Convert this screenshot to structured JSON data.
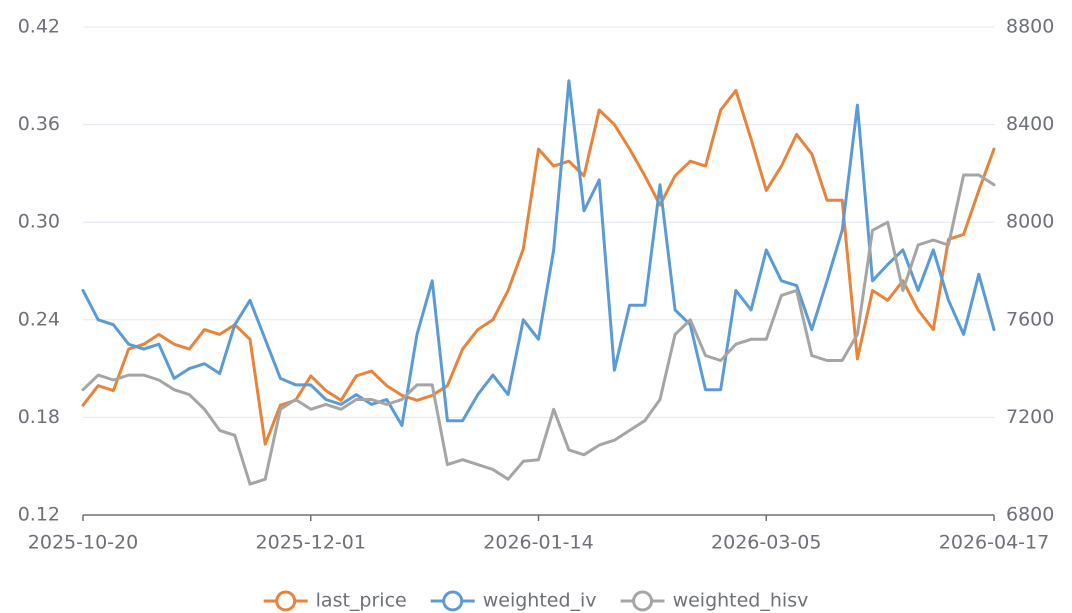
{
  "chart_data": {
    "type": "line",
    "categories": [
      "2025-10-20",
      null,
      null,
      null,
      null,
      null,
      null,
      null,
      null,
      null,
      null,
      null,
      null,
      null,
      null,
      "2025-12-01",
      null,
      null,
      null,
      null,
      null,
      null,
      null,
      null,
      null,
      null,
      null,
      null,
      null,
      null,
      "2026-01-14",
      null,
      null,
      null,
      null,
      null,
      null,
      null,
      null,
      null,
      null,
      null,
      null,
      null,
      null,
      "2026-03-05",
      null,
      null,
      null,
      null,
      null,
      null,
      null,
      null,
      null,
      null,
      null,
      null,
      null,
      null,
      "2026-04-17"
    ],
    "series": [
      {
        "name": "last_price",
        "color": "#e8833a",
        "axis": "y2",
        "values": [
          7250,
          7330,
          7310,
          7480,
          7500,
          7540,
          7500,
          7480,
          7560,
          7540,
          7580,
          7520,
          7090,
          7250,
          7270,
          7370,
          7310,
          7270,
          7370,
          7390,
          7330,
          7290,
          7270,
          7290,
          7330,
          7480,
          7560,
          7600,
          7720,
          7890,
          8300,
          8230,
          8250,
          8190,
          8460,
          8400,
          8300,
          8190,
          8070,
          8190,
          8250,
          8230,
          8460,
          8540,
          8340,
          8130,
          8230,
          8360,
          8280,
          8090,
          8090,
          7440,
          7720,
          7680,
          7760,
          7640,
          7560,
          7930,
          7950,
          8130,
          8300
        ]
      },
      {
        "name": "weighted_iv",
        "color": "#5b9bd5",
        "values": [
          0.258,
          0.24,
          0.237,
          0.225,
          0.222,
          0.225,
          0.204,
          0.21,
          0.213,
          0.207,
          0.237,
          0.252,
          0.228,
          0.204,
          0.2,
          0.2,
          0.191,
          0.188,
          0.194,
          0.188,
          0.191,
          0.175,
          0.231,
          0.264,
          0.178,
          0.178,
          0.194,
          0.206,
          0.194,
          0.24,
          0.228,
          0.283,
          0.387,
          0.307,
          0.326,
          0.209,
          0.249,
          0.249,
          0.323,
          0.246,
          0.237,
          0.197,
          0.197,
          0.258,
          0.246,
          0.283,
          0.264,
          0.261,
          0.234,
          0.264,
          0.295,
          0.372,
          0.264,
          0.274,
          0.283,
          0.258,
          0.283,
          0.252,
          0.231,
          0.268,
          0.234
        ]
      },
      {
        "name": "weighted_hisv",
        "color": "#a5a5a5",
        "values": [
          0.197,
          0.206,
          0.203,
          0.206,
          0.206,
          0.203,
          0.197,
          0.194,
          0.185,
          0.172,
          0.169,
          0.139,
          0.142,
          0.185,
          0.191,
          0.185,
          0.188,
          0.185,
          0.191,
          0.191,
          0.188,
          0.191,
          0.2,
          0.2,
          0.151,
          0.154,
          0.151,
          0.148,
          0.142,
          0.153,
          0.154,
          0.185,
          0.16,
          0.157,
          0.163,
          0.166,
          0.172,
          0.178,
          0.191,
          0.231,
          0.24,
          0.218,
          0.215,
          0.225,
          0.228,
          0.228,
          0.255,
          0.258,
          0.218,
          0.215,
          0.215,
          0.231,
          0.295,
          0.3,
          0.258,
          0.286,
          0.289,
          0.286,
          0.329,
          0.329,
          0.323
        ]
      }
    ],
    "ylim": [
      0.12,
      0.42
    ],
    "yticks": [
      0.12,
      0.18,
      0.24,
      {
        "value": 0.3,
        "label": "0.30"
      },
      0.36,
      0.42
    ],
    "y2lim": [
      6800,
      8800
    ],
    "y2ticks": [
      6800,
      7200,
      7600,
      8000,
      8400,
      8800
    ],
    "grid": true,
    "legend": "bottom"
  }
}
